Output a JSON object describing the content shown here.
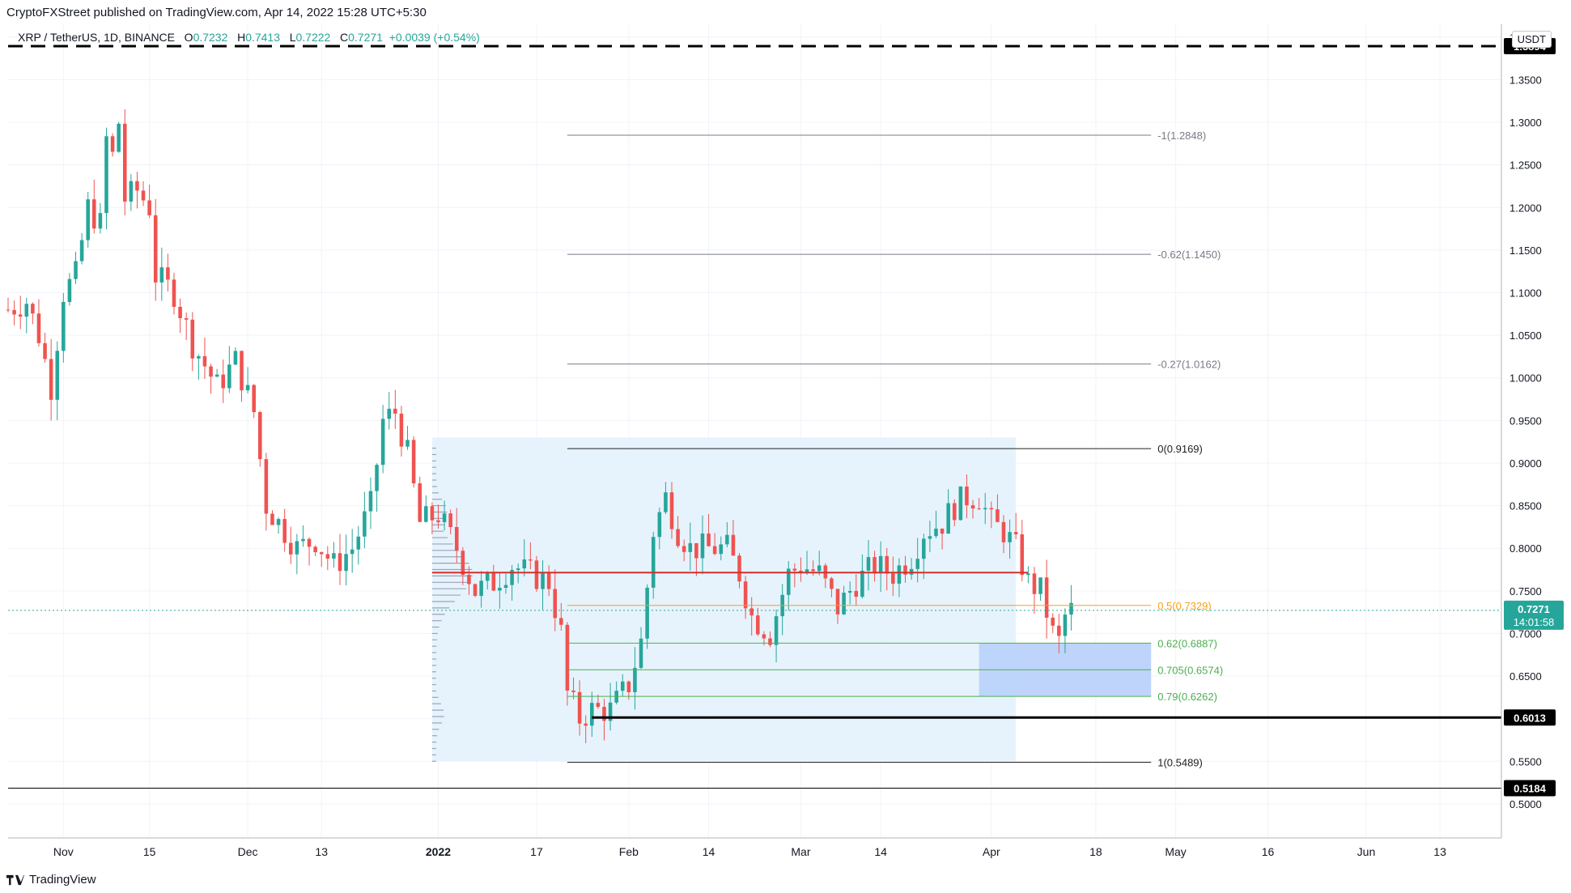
{
  "header": {
    "publish_text": "CryptoFXStreet published on TradingView.com, Apr 14, 2022 15:28 UTC+5:30",
    "symbol": "XRP / TetherUS, 1D, BINANCE",
    "ohlc": {
      "o_label": "O",
      "o_value": "0.7232",
      "h_label": "H",
      "h_value": "0.7413",
      "l_label": "L",
      "l_value": "0.7222",
      "c_label": "C",
      "c_value": "0.7271",
      "change": "+0.0039 (+0.54%)"
    },
    "currency": "USDT"
  },
  "footer": {
    "brand": "TradingView"
  },
  "colors": {
    "up": "#26a69a",
    "down": "#ef5350",
    "resistance": "#d32f2f",
    "fib_mid": "#f7a21b",
    "fib_green": "#4caf50",
    "zone": "#e3f2fd"
  },
  "chart_data": {
    "type": "candlestick",
    "ylim": [
      0.46,
      1.415
    ],
    "y_scale": "linear",
    "x_range": [
      "2021-10-23",
      "2022-06-23"
    ],
    "y_ticks": [
      "0.5000",
      "0.5500",
      "0.6000",
      "0.6500",
      "0.7000",
      "0.7500",
      "0.8000",
      "0.8500",
      "0.9000",
      "0.9500",
      "1.0000",
      "1.0500",
      "1.1000",
      "1.1500",
      "1.2000",
      "1.2500",
      "1.3000",
      "1.3500",
      "1.4000"
    ],
    "x_ticks": [
      {
        "label": "Nov",
        "date": "2021-11-01"
      },
      {
        "label": "15",
        "date": "2021-11-15"
      },
      {
        "label": "Dec",
        "date": "2021-12-01"
      },
      {
        "label": "13",
        "date": "2021-12-13"
      },
      {
        "label": "2022",
        "date": "2022-01-01",
        "bold": true
      },
      {
        "label": "17",
        "date": "2022-01-17"
      },
      {
        "label": "Feb",
        "date": "2022-02-01"
      },
      {
        "label": "14",
        "date": "2022-02-14"
      },
      {
        "label": "Mar",
        "date": "2022-03-01"
      },
      {
        "label": "14",
        "date": "2022-03-14"
      },
      {
        "label": "Apr",
        "date": "2022-04-01"
      },
      {
        "label": "18",
        "date": "2022-04-18"
      },
      {
        "label": "May",
        "date": "2022-05-01"
      },
      {
        "label": "16",
        "date": "2022-05-16"
      },
      {
        "label": "Jun",
        "date": "2022-06-01"
      },
      {
        "label": "13",
        "date": "2022-06-13"
      }
    ],
    "series": [
      {
        "name": "XRP / TetherUS",
        "close_path": [
          [
            "2021-10-23",
            1.08
          ],
          [
            "2021-10-26",
            1.09
          ],
          [
            "2021-10-28",
            1.05
          ],
          [
            "2021-10-30",
            0.99
          ],
          [
            "2021-11-01",
            1.1
          ],
          [
            "2021-11-03",
            1.12
          ],
          [
            "2021-11-05",
            1.2
          ],
          [
            "2021-11-07",
            1.18
          ],
          [
            "2021-11-08",
            1.28
          ],
          [
            "2021-11-09",
            1.26
          ],
          [
            "2021-11-10",
            1.3
          ],
          [
            "2021-11-11",
            1.21
          ],
          [
            "2021-11-13",
            1.22
          ],
          [
            "2021-11-15",
            1.2
          ],
          [
            "2021-11-16",
            1.12
          ],
          [
            "2021-11-19",
            1.1
          ],
          [
            "2021-11-22",
            1.04
          ],
          [
            "2021-11-26",
            0.99
          ],
          [
            "2021-11-29",
            1.02
          ],
          [
            "2021-12-02",
            0.96
          ],
          [
            "2021-12-04",
            0.85
          ],
          [
            "2021-12-07",
            0.82
          ],
          [
            "2021-12-09",
            0.8
          ],
          [
            "2021-12-12",
            0.81
          ],
          [
            "2021-12-15",
            0.78
          ],
          [
            "2021-12-18",
            0.8
          ],
          [
            "2021-12-21",
            0.85
          ],
          [
            "2021-12-23",
            0.95
          ],
          [
            "2021-12-25",
            0.96
          ],
          [
            "2021-12-27",
            0.91
          ],
          [
            "2021-12-29",
            0.83
          ],
          [
            "2022-01-01",
            0.84
          ],
          [
            "2022-01-04",
            0.8
          ],
          [
            "2022-01-07",
            0.75
          ],
          [
            "2022-01-10",
            0.76
          ],
          [
            "2022-01-13",
            0.78
          ],
          [
            "2022-01-16",
            0.77
          ],
          [
            "2022-01-19",
            0.76
          ],
          [
            "2022-01-21",
            0.7
          ],
          [
            "2022-01-22",
            0.63
          ],
          [
            "2022-01-24",
            0.6
          ],
          [
            "2022-01-26",
            0.61
          ],
          [
            "2022-01-29",
            0.61
          ],
          [
            "2022-02-01",
            0.64
          ],
          [
            "2022-02-03",
            0.69
          ],
          [
            "2022-02-05",
            0.82
          ],
          [
            "2022-02-07",
            0.86
          ],
          [
            "2022-02-09",
            0.82
          ],
          [
            "2022-02-11",
            0.8
          ],
          [
            "2022-02-14",
            0.8
          ],
          [
            "2022-02-17",
            0.8
          ],
          [
            "2022-02-19",
            0.77
          ],
          [
            "2022-02-21",
            0.72
          ],
          [
            "2022-02-24",
            0.7
          ],
          [
            "2022-02-27",
            0.77
          ],
          [
            "2022-03-01",
            0.78
          ],
          [
            "2022-03-04",
            0.77
          ],
          [
            "2022-03-07",
            0.73
          ],
          [
            "2022-03-10",
            0.76
          ],
          [
            "2022-03-13",
            0.78
          ],
          [
            "2022-03-16",
            0.77
          ],
          [
            "2022-03-19",
            0.79
          ],
          [
            "2022-03-21",
            0.82
          ],
          [
            "2022-03-24",
            0.83
          ],
          [
            "2022-03-26",
            0.85
          ],
          [
            "2022-03-28",
            0.86
          ],
          [
            "2022-03-30",
            0.86
          ],
          [
            "2022-04-01",
            0.83
          ],
          [
            "2022-04-03",
            0.82
          ],
          [
            "2022-04-05",
            0.8
          ],
          [
            "2022-04-07",
            0.76
          ],
          [
            "2022-04-09",
            0.75
          ],
          [
            "2022-04-11",
            0.7
          ],
          [
            "2022-04-12",
            0.69
          ],
          [
            "2022-04-13",
            0.72
          ],
          [
            "2022-04-14",
            0.7271
          ]
        ]
      }
    ],
    "right_axis_labels": [
      {
        "value": 1.3894,
        "label": "1.3894"
      },
      {
        "value": 0.6013,
        "label": "0.6013"
      },
      {
        "value": 0.5184,
        "label": "0.5184"
      }
    ],
    "current_price": {
      "value": 0.7271,
      "label": "0.7271",
      "countdown": "14:01:58"
    },
    "levels": [
      {
        "name": "resistance",
        "value": 1.3894,
        "style": "dashed"
      },
      {
        "name": "support-1",
        "value": 0.6013,
        "style": "solid"
      },
      {
        "name": "support-2",
        "value": 0.5184,
        "style": "solid"
      },
      {
        "name": "range-mid",
        "value": 0.7715,
        "style": "solid-red"
      }
    ],
    "fib_levels": [
      {
        "label": "-1(1.2848)",
        "value": 1.2848
      },
      {
        "label": "-0.62(1.1450)",
        "value": 1.145
      },
      {
        "label": "-0.27(1.0162)",
        "value": 1.0162
      },
      {
        "label": "0(0.9169)",
        "value": 0.9169
      },
      {
        "label": "0.5(0.7329)",
        "value": 0.7329
      },
      {
        "label": "0.62(0.6887)",
        "value": 0.6887
      },
      {
        "label": "0.705(0.6574)",
        "value": 0.6574
      },
      {
        "label": "0.79(0.6262)",
        "value": 0.6262
      },
      {
        "label": "1(0.5489)",
        "value": 0.5489
      }
    ],
    "fib_span": [
      "2022-01-22",
      "2022-04-27"
    ],
    "range_box": {
      "from": "2021-12-31",
      "to": "2022-04-05",
      "top": 0.93,
      "bottom": 0.55
    },
    "demand_zone": {
      "from": "2022-03-30",
      "to": "2022-04-27",
      "top": 0.6887,
      "bottom": 0.6262
    }
  }
}
